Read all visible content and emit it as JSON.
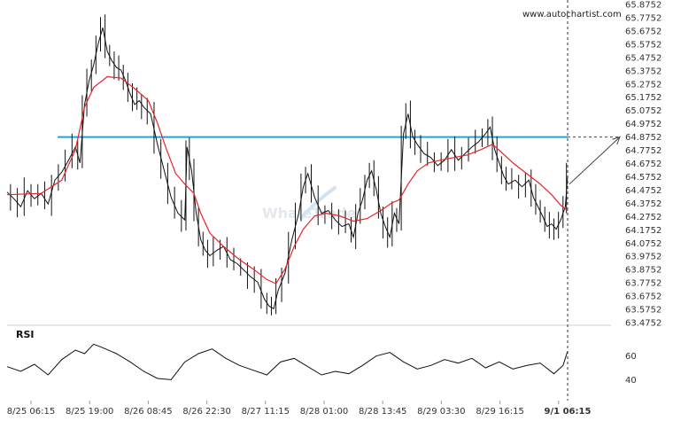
{
  "source_label": "www.autochartist.com",
  "logo_text": "WhaleTrade",
  "colors": {
    "price": "#111111",
    "moving_average": "#e8232b",
    "level": "#1ea5e0",
    "projection": "#444444",
    "rsi": "#111111",
    "divider": "#cfcfcf"
  },
  "chart_data": [
    {
      "type": "line",
      "panel": "price",
      "x_ticks": [
        "8/25 06:15",
        "8/25 19:00",
        "8/26 08:45",
        "8/26 22:30",
        "8/27 11:15",
        "8/28 01:00",
        "8/28 13:45",
        "8/29 03:30",
        "8/29 16:15",
        "9/1 06:15"
      ],
      "y_ticks": [
        "65.8752",
        "65.7752",
        "65.6752",
        "65.5752",
        "65.4752",
        "65.3752",
        "65.2752",
        "65.1752",
        "65.0752",
        "64.9752",
        "64.8752",
        "64.7752",
        "64.6752",
        "64.5752",
        "64.4752",
        "64.3752",
        "64.2752",
        "64.1752",
        "64.0752",
        "63.9752",
        "63.8752",
        "63.7752",
        "63.6752",
        "63.5752",
        "63.4752"
      ],
      "ylim": [
        63.4752,
        65.8752
      ],
      "series": [
        {
          "role": "price",
          "points": [
            [
              0,
              64.46
            ],
            [
              0.3,
              64.41
            ],
            [
              0.6,
              64.35
            ],
            [
              0.9,
              64.47
            ],
            [
              1.2,
              64.41
            ],
            [
              1.5,
              64.45
            ],
            [
              1.8,
              64.37
            ],
            [
              2.1,
              64.55
            ],
            [
              2.4,
              64.61
            ],
            [
              2.7,
              64.7
            ],
            [
              3.0,
              64.8
            ],
            [
              3.2,
              64.68
            ],
            [
              3.4,
              65.12
            ],
            [
              3.6,
              65.3
            ],
            [
              3.8,
              65.42
            ],
            [
              4.0,
              65.58
            ],
            [
              4.2,
              65.7
            ],
            [
              4.4,
              65.52
            ],
            [
              4.6,
              65.45
            ],
            [
              4.8,
              65.4
            ],
            [
              5.0,
              65.38
            ],
            [
              5.2,
              65.3
            ],
            [
              5.4,
              65.2
            ],
            [
              5.6,
              65.12
            ],
            [
              5.8,
              65.15
            ],
            [
              6.0,
              65.1
            ],
            [
              6.3,
              65.05
            ],
            [
              6.6,
              64.82
            ],
            [
              6.9,
              64.62
            ],
            [
              7.2,
              64.42
            ],
            [
              7.5,
              64.3
            ],
            [
              7.8,
              64.25
            ],
            [
              7.9,
              64.8
            ],
            [
              8.1,
              64.62
            ],
            [
              8.3,
              64.3
            ],
            [
              8.5,
              64.1
            ],
            [
              8.7,
              64.02
            ],
            [
              8.9,
              63.98
            ],
            [
              9.2,
              64.02
            ],
            [
              9.5,
              64.05
            ],
            [
              9.8,
              63.95
            ],
            [
              10.1,
              63.92
            ],
            [
              10.4,
              63.87
            ],
            [
              10.7,
              63.82
            ],
            [
              11.0,
              63.78
            ],
            [
              11.3,
              63.65
            ],
            [
              11.5,
              63.6
            ],
            [
              11.7,
              63.58
            ],
            [
              11.9,
              63.72
            ],
            [
              12.2,
              63.85
            ],
            [
              12.5,
              64.1
            ],
            [
              12.8,
              64.3
            ],
            [
              13.0,
              64.5
            ],
            [
              13.2,
              64.6
            ],
            [
              13.5,
              64.42
            ],
            [
              13.8,
              64.3
            ],
            [
              14.1,
              64.32
            ],
            [
              14.4,
              64.25
            ],
            [
              14.7,
              64.2
            ],
            [
              15.0,
              64.22
            ],
            [
              15.2,
              64.12
            ],
            [
              15.4,
              64.3
            ],
            [
              15.6,
              64.4
            ],
            [
              15.8,
              64.55
            ],
            [
              16.0,
              64.62
            ],
            [
              16.2,
              64.48
            ],
            [
              16.4,
              64.3
            ],
            [
              16.6,
              64.2
            ],
            [
              16.8,
              64.12
            ],
            [
              17.0,
              64.3
            ],
            [
              17.2,
              64.22
            ],
            [
              17.4,
              64.9
            ],
            [
              17.6,
              65.05
            ],
            [
              17.8,
              64.88
            ],
            [
              18.0,
              64.82
            ],
            [
              18.3,
              64.75
            ],
            [
              18.6,
              64.72
            ],
            [
              18.9,
              64.66
            ],
            [
              19.2,
              64.7
            ],
            [
              19.5,
              64.78
            ],
            [
              19.8,
              64.7
            ],
            [
              20.1,
              64.75
            ],
            [
              20.4,
              64.8
            ],
            [
              20.7,
              64.84
            ],
            [
              21.0,
              64.9
            ],
            [
              21.2,
              64.95
            ],
            [
              21.4,
              64.78
            ],
            [
              21.6,
              64.68
            ],
            [
              21.8,
              64.58
            ],
            [
              22.0,
              64.52
            ],
            [
              22.3,
              64.55
            ],
            [
              22.6,
              64.5
            ],
            [
              22.9,
              64.55
            ],
            [
              23.1,
              64.42
            ],
            [
              23.3,
              64.35
            ],
            [
              23.5,
              64.28
            ],
            [
              23.7,
              64.2
            ],
            [
              23.9,
              64.22
            ],
            [
              24.1,
              64.18
            ],
            [
              24.3,
              64.25
            ],
            [
              24.5,
              64.35
            ],
            [
              24.6,
              64.58
            ]
          ]
        },
        {
          "role": "moving_average",
          "points": [
            [
              0,
              64.44
            ],
            [
              1.5,
              64.45
            ],
            [
              2.4,
              64.55
            ],
            [
              3.0,
              64.78
            ],
            [
              3.4,
              65.1
            ],
            [
              3.8,
              65.25
            ],
            [
              4.4,
              65.33
            ],
            [
              5.0,
              65.32
            ],
            [
              5.6,
              65.24
            ],
            [
              6.2,
              65.15
            ],
            [
              6.6,
              64.98
            ],
            [
              7.0,
              64.78
            ],
            [
              7.4,
              64.6
            ],
            [
              7.8,
              64.52
            ],
            [
              8.2,
              64.45
            ],
            [
              8.5,
              64.3
            ],
            [
              8.9,
              64.15
            ],
            [
              9.5,
              64.05
            ],
            [
              10.2,
              63.95
            ],
            [
              10.8,
              63.88
            ],
            [
              11.4,
              63.8
            ],
            [
              11.8,
              63.77
            ],
            [
              12.2,
              63.88
            ],
            [
              12.6,
              64.05
            ],
            [
              13.0,
              64.18
            ],
            [
              13.5,
              64.28
            ],
            [
              14.0,
              64.3
            ],
            [
              14.6,
              64.28
            ],
            [
              15.2,
              64.24
            ],
            [
              15.8,
              64.26
            ],
            [
              16.4,
              64.32
            ],
            [
              16.9,
              64.38
            ],
            [
              17.2,
              64.4
            ],
            [
              17.6,
              64.52
            ],
            [
              18.0,
              64.62
            ],
            [
              18.5,
              64.68
            ],
            [
              19.0,
              64.7
            ],
            [
              19.6,
              64.72
            ],
            [
              20.2,
              64.74
            ],
            [
              20.8,
              64.78
            ],
            [
              21.3,
              64.82
            ],
            [
              21.7,
              64.76
            ],
            [
              22.2,
              64.68
            ],
            [
              22.8,
              64.6
            ],
            [
              23.4,
              64.52
            ],
            [
              23.9,
              64.44
            ],
            [
              24.3,
              64.36
            ],
            [
              24.6,
              64.32
            ]
          ]
        }
      ],
      "level": 64.8752,
      "projection": {
        "from": [
          24.6,
          64.52
        ],
        "to": [
          26.7,
          64.8752
        ]
      }
    },
    {
      "type": "line",
      "panel": "rsi",
      "title": "RSI",
      "y_ticks": [
        "60",
        "40"
      ],
      "ylim": [
        20,
        80
      ],
      "series": [
        {
          "role": "rsi",
          "points": [
            [
              0,
              51
            ],
            [
              0.6,
              47
            ],
            [
              1.2,
              53
            ],
            [
              1.8,
              44
            ],
            [
              2.4,
              57
            ],
            [
              3.0,
              65
            ],
            [
              3.4,
              62
            ],
            [
              3.8,
              70
            ],
            [
              4.2,
              67
            ],
            [
              4.8,
              62
            ],
            [
              5.4,
              55
            ],
            [
              6.0,
              47
            ],
            [
              6.6,
              41
            ],
            [
              7.2,
              40
            ],
            [
              7.8,
              55
            ],
            [
              8.4,
              62
            ],
            [
              9.0,
              66
            ],
            [
              9.6,
              58
            ],
            [
              10.2,
              52
            ],
            [
              10.8,
              48
            ],
            [
              11.4,
              44
            ],
            [
              12.0,
              55
            ],
            [
              12.6,
              58
            ],
            [
              13.2,
              51
            ],
            [
              13.8,
              44
            ],
            [
              14.4,
              47
            ],
            [
              15.0,
              45
            ],
            [
              15.6,
              52
            ],
            [
              16.2,
              60
            ],
            [
              16.8,
              63
            ],
            [
              17.4,
              55
            ],
            [
              18.0,
              49
            ],
            [
              18.6,
              52
            ],
            [
              19.2,
              57
            ],
            [
              19.8,
              54
            ],
            [
              20.4,
              58
            ],
            [
              21.0,
              50
            ],
            [
              21.6,
              55
            ],
            [
              22.2,
              49
            ],
            [
              22.8,
              52
            ],
            [
              23.4,
              54
            ],
            [
              24.0,
              45
            ],
            [
              24.4,
              52
            ],
            [
              24.6,
              64
            ]
          ]
        }
      ]
    }
  ]
}
